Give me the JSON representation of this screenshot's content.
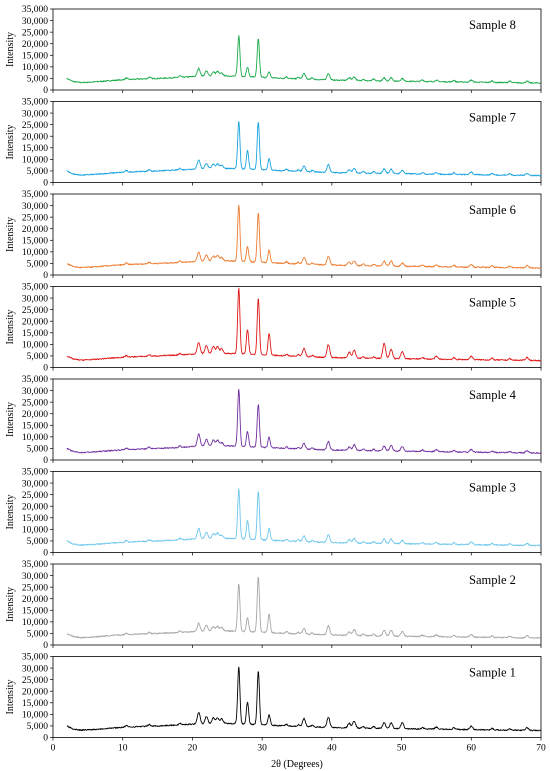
{
  "chart_data": {
    "type": "line",
    "xlabel": "2θ (Degrees)",
    "ylabel": "Intensity",
    "xlim": [
      0,
      70
    ],
    "ylim": [
      0,
      35000
    ],
    "x_ticks": [
      "0",
      "10",
      "20",
      "30",
      "40",
      "50",
      "60",
      "70"
    ],
    "y_ticks": [
      "0",
      "5,000",
      "10,000",
      "15,000",
      "20,000",
      "25,000",
      "30,000",
      "35,000"
    ],
    "grid": false,
    "legend": "none",
    "baseline": [
      [
        2,
        5000
      ],
      [
        2.5,
        4200
      ],
      [
        3,
        3600
      ],
      [
        4,
        3200
      ],
      [
        6,
        3500
      ],
      [
        8,
        4000
      ],
      [
        10,
        4400
      ],
      [
        12,
        4700
      ],
      [
        15,
        5000
      ],
      [
        18,
        5400
      ],
      [
        20,
        5800
      ],
      [
        22,
        6000
      ],
      [
        25,
        6100
      ],
      [
        28,
        5800
      ],
      [
        32,
        5200
      ],
      [
        36,
        4700
      ],
      [
        40,
        4300
      ],
      [
        45,
        4000
      ],
      [
        50,
        3800
      ],
      [
        55,
        3600
      ],
      [
        60,
        3400
      ],
      [
        65,
        3200
      ],
      [
        70,
        3000
      ]
    ],
    "peak_positions": [
      20.9,
      22.0,
      23.0,
      23.6,
      24.2,
      26.65,
      27.9,
      29.45,
      31.0,
      36.0,
      39.5,
      42.5,
      43.2,
      47.5,
      48.5,
      50.1,
      55.0,
      60.0,
      68.0
    ],
    "series": [
      {
        "name": "Sample 8",
        "color": "#1aaa4a",
        "peaks": [
          3500,
          2300,
          1800,
          2000,
          1200,
          17500,
          4000,
          16500,
          2500,
          2500,
          2800,
          1200,
          1600,
          1300,
          1500,
          1200,
          600,
          900,
          700
        ]
      },
      {
        "name": "Sample 7",
        "color": "#1aa3e0",
        "peaks": [
          4000,
          2300,
          2000,
          2000,
          1500,
          20500,
          8000,
          20500,
          5000,
          2500,
          3500,
          1500,
          2000,
          2000,
          2000,
          1500,
          700,
          1200,
          900
        ]
      },
      {
        "name": "Sample 6",
        "color": "#ed7d31",
        "peaks": [
          4000,
          2800,
          2200,
          2500,
          1500,
          24500,
          6500,
          21500,
          5500,
          3000,
          3800,
          1500,
          2000,
          2000,
          2200,
          1500,
          800,
          1300,
          1000
        ]
      },
      {
        "name": "Sample 5",
        "color": "#e01818",
        "peaks": [
          5000,
          3500,
          3000,
          3000,
          2000,
          28500,
          10500,
          24500,
          9500,
          3500,
          5500,
          2500,
          3500,
          6500,
          4000,
          3000,
          1200,
          1500,
          1300
        ]
      },
      {
        "name": "Sample 4",
        "color": "#7030a0",
        "peaks": [
          5500,
          3000,
          2500,
          2500,
          1500,
          24500,
          6500,
          18500,
          4500,
          2500,
          3500,
          1500,
          2500,
          2000,
          2500,
          2000,
          800,
          1200,
          900
        ]
      },
      {
        "name": "Sample 3",
        "color": "#6dc7ec",
        "peaks": [
          4500,
          2800,
          2200,
          2500,
          1500,
          21500,
          8000,
          21000,
          5000,
          2500,
          3500,
          1500,
          2000,
          2000,
          2000,
          1500,
          800,
          1200,
          900
        ]
      },
      {
        "name": "Sample 2",
        "color": "#a6a6a6",
        "peaks": [
          3500,
          2500,
          2000,
          2000,
          1500,
          20500,
          6000,
          24000,
          8000,
          2500,
          4000,
          1500,
          2500,
          2500,
          2500,
          2000,
          800,
          1300,
          1000
        ]
      },
      {
        "name": "Sample 1",
        "color": "#000000",
        "peaks": [
          5000,
          3000,
          2500,
          2500,
          2000,
          24500,
          9500,
          23000,
          4500,
          3500,
          4500,
          2000,
          3000,
          2500,
          2500,
          2500,
          900,
          1500,
          1200
        ]
      }
    ]
  }
}
